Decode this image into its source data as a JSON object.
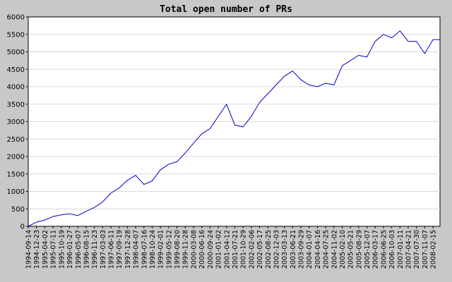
{
  "chart_data": {
    "type": "line",
    "title": "Total open number of PRs",
    "xlabel": "",
    "ylabel": "",
    "ylim": [
      0,
      6000
    ],
    "yticks": [
      0,
      500,
      1000,
      1500,
      2000,
      2500,
      3000,
      3500,
      4000,
      4500,
      5000,
      5500,
      6000
    ],
    "xrange": [
      "1994-09-14",
      "2008-05-10"
    ],
    "xticks": [
      "1994-09-14",
      "1994-12-23",
      "1995-04-02",
      "1995-07-11",
      "1995-10-19",
      "1996-01-27",
      "1996-05-07",
      "1996-08-15",
      "1996-11-23",
      "1997-03-03",
      "1997-06-11",
      "1997-09-19",
      "1997-12-28",
      "1998-04-07",
      "1998-07-16",
      "1998-10-24",
      "1999-02-01",
      "1999-05-12",
      "1999-08-20",
      "1999-11-28",
      "2000-03-08",
      "2000-06-16",
      "2000-09-24",
      "2001-01-02",
      "2001-04-12",
      "2001-07-21",
      "2001-10-29",
      "2002-02-06",
      "2002-05-17",
      "2002-08-25",
      "2002-12-03",
      "2003-03-13",
      "2003-06-21",
      "2003-09-29",
      "2004-01-07",
      "2004-04-16",
      "2004-07-25",
      "2004-11-02",
      "2005-02-10",
      "2005-05-21",
      "2005-08-29",
      "2005-12-07",
      "2006-03-17",
      "2006-06-25",
      "2006-10-03",
      "2007-01-11",
      "2007-04-21",
      "2007-07-30",
      "2007-11-07",
      "2008-02-15"
    ],
    "grid": true,
    "legend": "none",
    "line_color": "#0000cc",
    "series": [
      {
        "x": [
          "1994-09-14",
          "1994-12-23",
          "1995-04-02",
          "1995-07-11",
          "1995-10-19",
          "1996-01-27",
          "1996-05-07",
          "1996-08-15",
          "1996-11-23",
          "1997-03-03",
          "1997-06-11",
          "1997-09-19",
          "1997-12-28",
          "1998-04-07",
          "1998-07-16",
          "1998-10-24",
          "1999-02-01",
          "1999-05-12",
          "1999-08-20",
          "1999-11-28",
          "2000-03-08",
          "2000-06-16",
          "2000-09-24",
          "2001-01-02",
          "2001-04-12",
          "2001-07-21",
          "2001-10-29",
          "2002-02-06",
          "2002-05-17",
          "2002-08-25",
          "2002-12-03",
          "2003-03-13",
          "2003-06-21",
          "2003-09-29",
          "2004-01-07",
          "2004-04-16",
          "2004-07-25",
          "2004-11-02",
          "2005-02-10",
          "2005-05-21",
          "2005-08-29",
          "2005-12-07",
          "2006-03-17",
          "2006-06-25",
          "2006-10-03",
          "2007-01-11",
          "2007-04-21",
          "2007-07-30",
          "2007-11-07",
          "2008-02-15",
          "2008-05-10"
        ],
        "values": [
          0,
          120,
          180,
          280,
          330,
          360,
          310,
          430,
          540,
          700,
          950,
          1100,
          1320,
          1460,
          1200,
          1300,
          1620,
          1780,
          1850,
          2100,
          2380,
          2650,
          2800,
          3150,
          3500,
          2900,
          2850,
          3150,
          3550,
          3800,
          4050,
          4300,
          4450,
          4200,
          4050,
          4000,
          4100,
          4050,
          4600,
          4750,
          4900,
          4850,
          5300,
          5500,
          5400,
          5600,
          5300,
          5300,
          4950,
          5350,
          5350
        ]
      }
    ]
  }
}
